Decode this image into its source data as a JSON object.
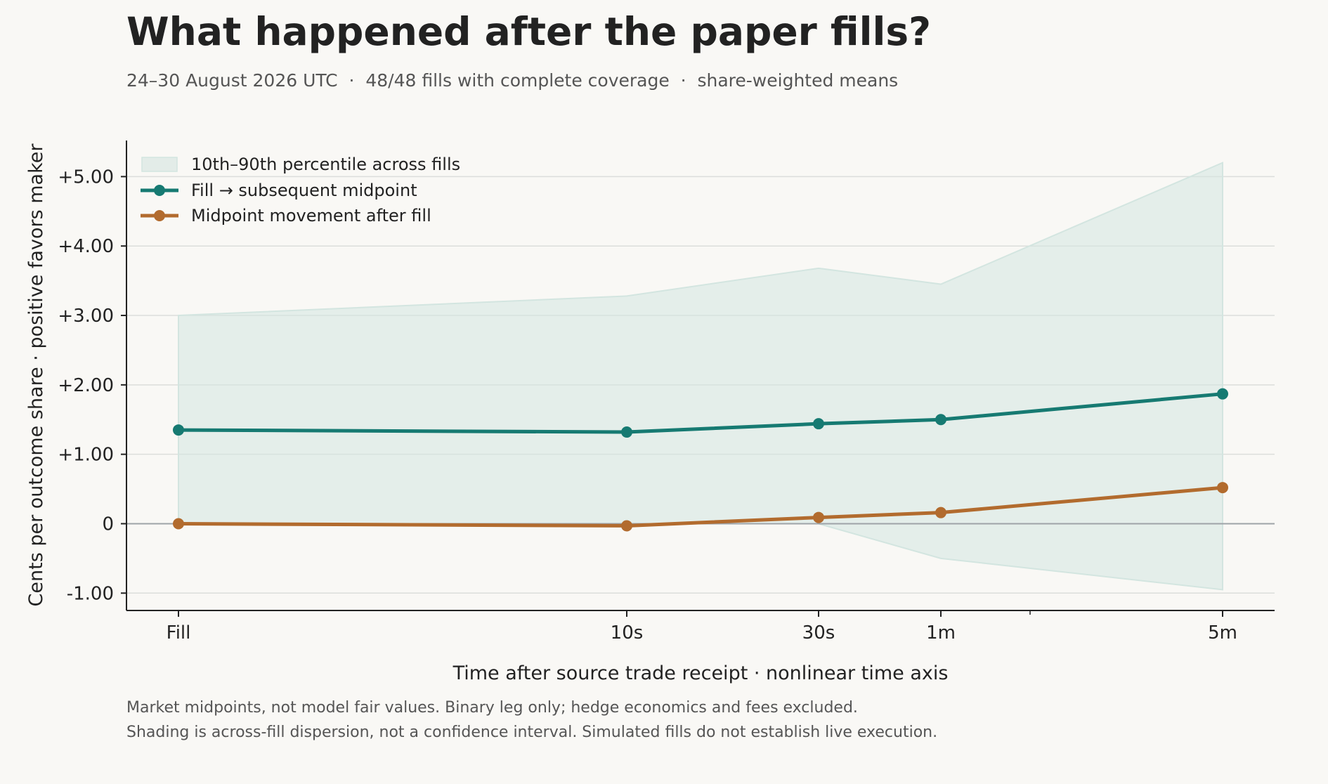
{
  "chart_data": {
    "type": "line",
    "title": "What happened after the paper fills?",
    "subtitle": "24–30 August 2026 UTC  ·  48/48 fills with complete coverage  ·  share-weighted means",
    "xlabel": "Time after source trade receipt · nonlinear time axis",
    "ylabel": "Cents per outcome share · positive favors maker",
    "x_scale": "nonlinear",
    "categories": [
      "Fill",
      "10s",
      "30s",
      "1m",
      "5m"
    ],
    "minor_ticks": [
      "2m"
    ],
    "y_ticks": [
      {
        "value": 5,
        "label": "+5.00"
      },
      {
        "value": 4,
        "label": "+4.00"
      },
      {
        "value": 3,
        "label": "+3.00"
      },
      {
        "value": 2,
        "label": "+2.00"
      },
      {
        "value": 1,
        "label": "+1.00"
      },
      {
        "value": 0,
        "label": "0"
      },
      {
        "value": -1,
        "label": "-1.00"
      }
    ],
    "ylim": [
      -1.25,
      5.52
    ],
    "grid": true,
    "legend_position": "top-left",
    "band": {
      "name": "10th–90th percentile across fills",
      "lower": [
        0,
        0,
        0,
        -0.5,
        -0.95
      ],
      "upper": [
        3.0,
        3.28,
        3.68,
        3.45,
        5.2
      ],
      "color": "#d3e5e0"
    },
    "series": [
      {
        "name": "Fill → subsequent midpoint",
        "values": [
          1.35,
          1.32,
          1.44,
          1.5,
          1.87
        ],
        "color": "#167a72"
      },
      {
        "name": "Midpoint movement after fill",
        "values": [
          0.0,
          -0.03,
          0.09,
          0.16,
          0.52
        ],
        "color": "#b26b2e"
      }
    ]
  },
  "footnotes": [
    "Market midpoints, not model fair values. Binary leg only; hedge economics and fees excluded.",
    "Shading is across-fill dispersion, not a confidence interval. Simulated fills do not establish live execution."
  ],
  "colors": {
    "background": "#f9f8f5",
    "grid": "#dcdedb",
    "zero_line": "#9ea3a8",
    "axis": "#222222"
  }
}
